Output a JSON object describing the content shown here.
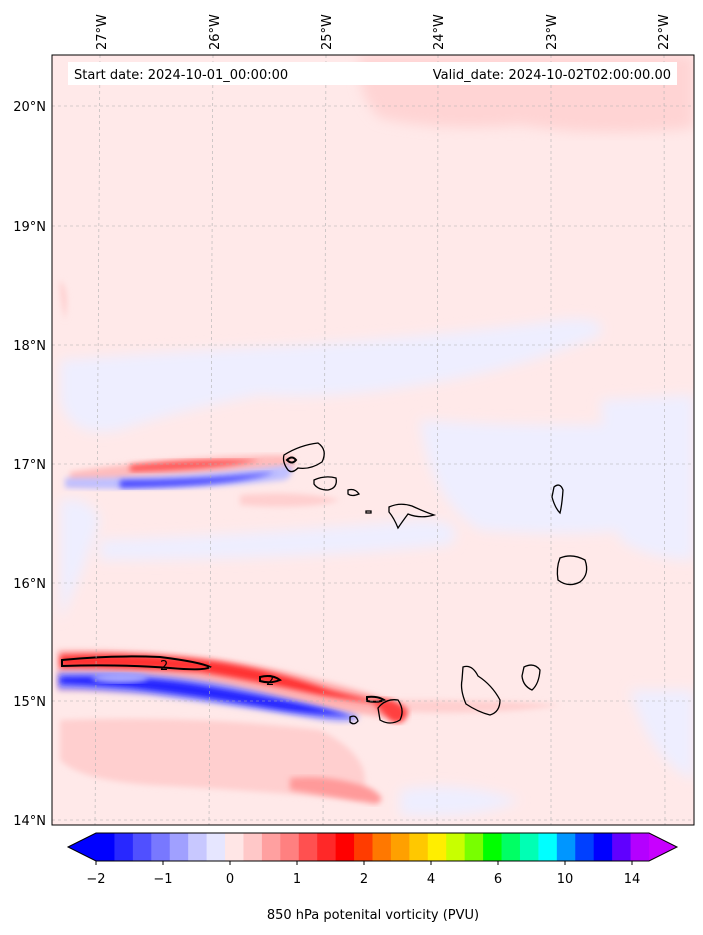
{
  "map": {
    "start_date_label": "Start date: 2024-10-01_00:00:00",
    "valid_date_label": "Valid_date: 2024-10-02T02:00:00.00",
    "lon_ticks": [
      "27°W",
      "26°W",
      "25°W",
      "24°W",
      "23°W",
      "22°W"
    ],
    "lat_ticks": [
      "20°N",
      "19°N",
      "18°N",
      "17°N",
      "16°N",
      "15°N",
      "14°N"
    ],
    "contour_label": "2"
  },
  "colorbar": {
    "title": "850 hPa potenital vorticity (PVU)",
    "tick_labels": [
      "−2",
      "−1",
      "0",
      "1",
      "2",
      "4",
      "6",
      "10",
      "14"
    ],
    "colors": [
      "#0000ff",
      "#2828ff",
      "#5050ff",
      "#7878ff",
      "#a0a0ff",
      "#c8c8ff",
      "#e6e6ff",
      "#ffe6e6",
      "#ffc8c8",
      "#ffa0a0",
      "#ff8080",
      "#ff5050",
      "#ff2828",
      "#ff0000",
      "#ff3c00",
      "#ff7800",
      "#ffa000",
      "#ffc800",
      "#ffee00",
      "#c8ff00",
      "#78ff00",
      "#00ff00",
      "#00ff64",
      "#00ffb4",
      "#00ffff",
      "#0096ff",
      "#0040ff",
      "#0000ff",
      "#6000ff",
      "#b400ff"
    ],
    "under_color": "#0000ff",
    "over_color": "#c800ff"
  },
  "colors": {
    "background_field": "#ffe9e9",
    "light_blue_field": "#eeeeff",
    "light_red_field": "#ffd4d4"
  }
}
